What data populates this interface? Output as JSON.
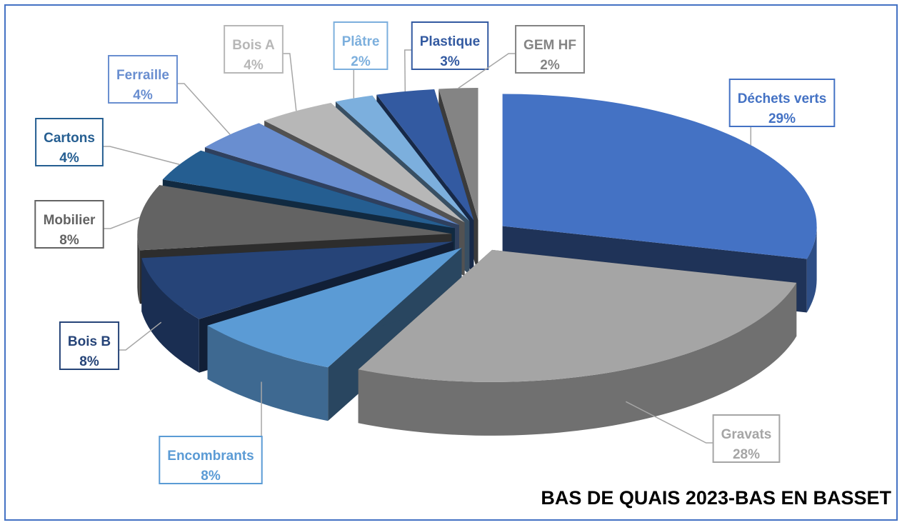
{
  "chart_data": {
    "type": "pie",
    "title": "BAS DE QUAIS 2023-BAS EN BASSET",
    "categories": [
      "Déchets verts",
      "Gravats",
      "Encombrants",
      "Bois B",
      "Mobilier",
      "Cartons",
      "Ferraille",
      "Bois A",
      "Plâtre",
      "Plastique",
      "GEM HF"
    ],
    "values": [
      29,
      28,
      8,
      8,
      8,
      4,
      4,
      4,
      2,
      3,
      2
    ],
    "value_labels": [
      "29%",
      "28%",
      "8%",
      "8%",
      "8%",
      "4%",
      "4%",
      "4%",
      "2%",
      "3%",
      "2%"
    ],
    "colors": [
      "#4472c4",
      "#a5a5a5",
      "#5b9bd5",
      "#264478",
      "#636363",
      "#255e91",
      "#698ed0",
      "#b7b7b7",
      "#7cafdd",
      "#335aa1",
      "#848484"
    ]
  }
}
